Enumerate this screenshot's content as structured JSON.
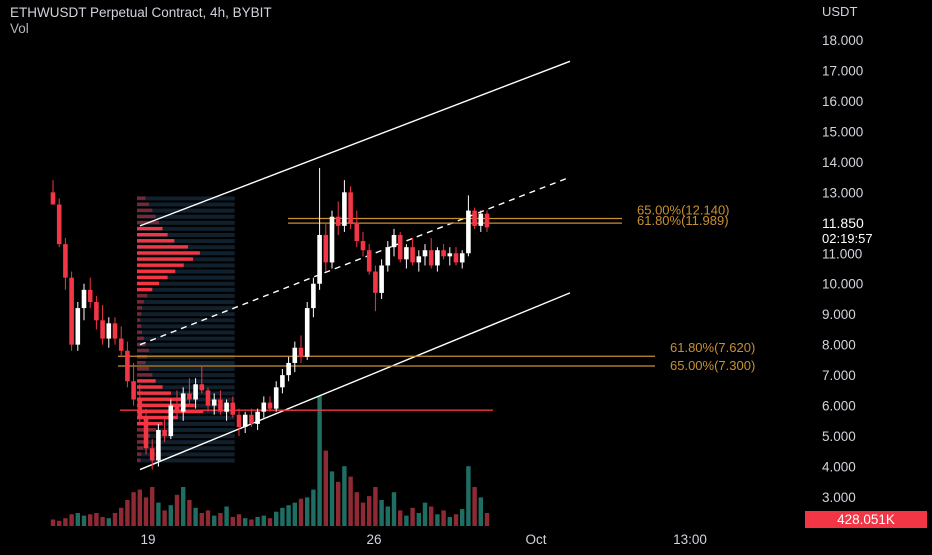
{
  "header": {
    "title": "ETHWUSDT Perpetual Contract, 4h, BYBIT",
    "sub": "Vol"
  },
  "colors": {
    "background": "#000000",
    "bull": "#ffffff",
    "bear": "#f23645",
    "vol_up": "#1f6e63",
    "vol_down": "#8f2a35",
    "profile": "#f23645",
    "profile_va": "#1e3a52",
    "fib": "#c8902f",
    "channel": "#ffffff",
    "support": "#f23645",
    "text": "#d1d4dc",
    "badge": "#f23645"
  },
  "chart_data": {
    "type": "candlestick",
    "title": "ETHWUSDT Perpetual Contract, 4h, BYBIT",
    "indicator": "Vol",
    "yaxis": {
      "unit": "USDT",
      "range": [
        2.4,
        19.0
      ],
      "ticks": [
        "18.000",
        "17.000",
        "16.000",
        "15.000",
        "14.000",
        "13.000",
        "11.000",
        "10.000",
        "9.000",
        "8.000",
        "7.000",
        "6.000",
        "5.000",
        "4.000",
        "3.000"
      ]
    },
    "xaxis": {
      "ticks": [
        "19",
        "26",
        "Oct",
        "13:00"
      ]
    },
    "price": {
      "value": "11.850",
      "countdown": "02:19:57"
    },
    "volume_badge": "428.051K",
    "fib_levels": [
      {
        "label": "65.00%(12.140)",
        "value": 12.14
      },
      {
        "label": "61.80%(11.989)",
        "value": 11.989
      },
      {
        "label": "61.80%(7.620)",
        "value": 7.62
      },
      {
        "label": "65.00%(7.300)",
        "value": 7.3
      }
    ],
    "support_line": 5.85,
    "channel": {
      "upper": [
        [
          4.0,
          11.9
        ],
        [
          18.5,
          17.3
        ]
      ],
      "middle": [
        [
          4.0,
          8.0
        ],
        [
          18.5,
          13.5
        ]
      ],
      "lower": [
        [
          4.0,
          3.9
        ],
        [
          18.5,
          9.7
        ]
      ]
    },
    "candles": [
      [
        13.0,
        13.4,
        12.6,
        12.6
      ],
      [
        12.6,
        12.8,
        11.2,
        11.3
      ],
      [
        11.3,
        11.5,
        9.8,
        10.2
      ],
      [
        10.2,
        10.4,
        7.8,
        8.0
      ],
      [
        8.0,
        9.4,
        7.8,
        9.2
      ],
      [
        9.2,
        10.0,
        8.8,
        9.8
      ],
      [
        9.8,
        10.2,
        9.2,
        9.4
      ],
      [
        9.4,
        9.6,
        8.5,
        8.8
      ],
      [
        8.8,
        9.3,
        8.0,
        8.2
      ],
      [
        8.2,
        8.9,
        7.9,
        8.7
      ],
      [
        8.7,
        8.9,
        8.0,
        8.2
      ],
      [
        8.2,
        8.6,
        7.6,
        7.8
      ],
      [
        7.8,
        8.1,
        6.6,
        6.8
      ],
      [
        6.8,
        7.4,
        6.0,
        6.2
      ],
      [
        6.2,
        6.7,
        5.4,
        5.6
      ],
      [
        5.6,
        5.9,
        4.4,
        4.6
      ],
      [
        4.6,
        4.9,
        3.9,
        4.2
      ],
      [
        4.2,
        5.4,
        4.0,
        5.2
      ],
      [
        5.2,
        5.6,
        4.8,
        5.0
      ],
      [
        5.0,
        6.2,
        4.9,
        6.0
      ],
      [
        6.0,
        6.5,
        5.6,
        5.8
      ],
      [
        5.8,
        6.6,
        5.5,
        6.4
      ],
      [
        6.4,
        6.9,
        6.0,
        6.2
      ],
      [
        6.2,
        6.9,
        5.9,
        6.7
      ],
      [
        6.7,
        7.3,
        6.4,
        6.5
      ],
      [
        6.5,
        6.6,
        5.8,
        6.0
      ],
      [
        6.0,
        6.4,
        5.7,
        6.2
      ],
      [
        6.2,
        6.5,
        5.7,
        5.8
      ],
      [
        5.8,
        6.2,
        5.5,
        6.1
      ],
      [
        6.1,
        6.3,
        5.6,
        5.7
      ],
      [
        5.7,
        5.9,
        5.0,
        5.3
      ],
      [
        5.3,
        5.8,
        5.1,
        5.7
      ],
      [
        5.7,
        5.9,
        5.3,
        5.4
      ],
      [
        5.4,
        5.9,
        5.2,
        5.8
      ],
      [
        5.8,
        6.3,
        5.6,
        6.1
      ],
      [
        6.1,
        6.3,
        5.8,
        5.9
      ],
      [
        5.9,
        6.8,
        5.8,
        6.6
      ],
      [
        6.6,
        7.2,
        6.4,
        7.0
      ],
      [
        7.0,
        7.6,
        6.8,
        7.4
      ],
      [
        7.4,
        8.1,
        7.1,
        7.9
      ],
      [
        7.9,
        8.3,
        7.4,
        7.6
      ],
      [
        7.6,
        9.4,
        7.5,
        9.2
      ],
      [
        9.2,
        10.2,
        8.9,
        10.0
      ],
      [
        10.0,
        13.8,
        9.8,
        11.6
      ],
      [
        11.6,
        12.0,
        10.4,
        10.7
      ],
      [
        10.7,
        12.4,
        10.5,
        12.2
      ],
      [
        12.2,
        12.7,
        11.6,
        11.9
      ],
      [
        11.9,
        13.4,
        11.7,
        13.0
      ],
      [
        13.0,
        13.2,
        11.8,
        12.0
      ],
      [
        12.0,
        12.4,
        11.2,
        11.4
      ],
      [
        11.4,
        11.7,
        10.9,
        11.1
      ],
      [
        11.1,
        11.3,
        10.3,
        10.4
      ],
      [
        10.4,
        10.6,
        9.1,
        9.7
      ],
      [
        9.7,
        10.8,
        9.5,
        10.6
      ],
      [
        10.6,
        11.4,
        10.4,
        11.2
      ],
      [
        11.2,
        11.8,
        10.9,
        11.6
      ],
      [
        11.6,
        11.7,
        10.7,
        10.8
      ],
      [
        10.8,
        11.3,
        10.5,
        11.2
      ],
      [
        11.2,
        11.5,
        10.6,
        10.7
      ],
      [
        10.7,
        11.1,
        10.4,
        10.9
      ],
      [
        10.9,
        11.3,
        10.6,
        11.1
      ],
      [
        11.1,
        11.5,
        10.5,
        10.6
      ],
      [
        10.6,
        11.2,
        10.4,
        11.1
      ],
      [
        11.1,
        11.3,
        10.8,
        10.9
      ],
      [
        10.9,
        11.2,
        10.6,
        11.0
      ],
      [
        11.0,
        11.2,
        10.6,
        10.7
      ],
      [
        10.7,
        11.1,
        10.5,
        11.0
      ],
      [
        11.0,
        12.9,
        10.9,
        12.4
      ],
      [
        12.4,
        12.5,
        11.8,
        11.9
      ],
      [
        11.9,
        12.4,
        11.7,
        12.3
      ],
      [
        12.3,
        12.4,
        11.7,
        11.85
      ]
    ],
    "volume": [
      0.05,
      0.04,
      0.06,
      0.09,
      0.1,
      0.08,
      0.09,
      0.1,
      0.07,
      0.06,
      0.1,
      0.14,
      0.2,
      0.26,
      0.28,
      0.22,
      0.3,
      0.18,
      0.12,
      0.16,
      0.24,
      0.3,
      0.2,
      0.14,
      0.1,
      0.12,
      0.08,
      0.1,
      0.15,
      0.07,
      0.09,
      0.06,
      0.05,
      0.07,
      0.08,
      0.06,
      0.11,
      0.14,
      0.16,
      0.18,
      0.21,
      0.22,
      0.28,
      1.0,
      0.58,
      0.42,
      0.34,
      0.46,
      0.38,
      0.26,
      0.18,
      0.23,
      0.3,
      0.2,
      0.15,
      0.26,
      0.12,
      0.08,
      0.14,
      0.1,
      0.18,
      0.15,
      0.09,
      0.12,
      0.07,
      0.09,
      0.13,
      0.46,
      0.3,
      0.22,
      0.1
    ],
    "volume_profile": [
      [
        12.8,
        0.1,
        0
      ],
      [
        12.6,
        0.14,
        0
      ],
      [
        12.4,
        0.18,
        0
      ],
      [
        12.2,
        0.22,
        0
      ],
      [
        12.0,
        0.26,
        0
      ],
      [
        11.8,
        0.3,
        1
      ],
      [
        11.6,
        0.36,
        1
      ],
      [
        11.4,
        0.44,
        1
      ],
      [
        11.2,
        0.6,
        1
      ],
      [
        11.0,
        0.74,
        1
      ],
      [
        10.8,
        0.66,
        1
      ],
      [
        10.6,
        0.55,
        1
      ],
      [
        10.4,
        0.45,
        1
      ],
      [
        10.2,
        0.36,
        1
      ],
      [
        10.0,
        0.26,
        1
      ],
      [
        9.8,
        0.18,
        1
      ],
      [
        9.6,
        0.12,
        0
      ],
      [
        9.4,
        0.08,
        0
      ],
      [
        9.2,
        0.06,
        0
      ],
      [
        9.0,
        0.05,
        0
      ],
      [
        8.8,
        0.04,
        0
      ],
      [
        8.6,
        0.05,
        0
      ],
      [
        8.4,
        0.06,
        0
      ],
      [
        8.2,
        0.08,
        0
      ],
      [
        8.0,
        0.1,
        0
      ],
      [
        7.8,
        0.14,
        0
      ],
      [
        7.6,
        0.12,
        0
      ],
      [
        7.4,
        0.1,
        0
      ],
      [
        7.2,
        0.14,
        0
      ],
      [
        7.0,
        0.18,
        0
      ],
      [
        6.8,
        0.22,
        1
      ],
      [
        6.6,
        0.3,
        1
      ],
      [
        6.4,
        0.4,
        1
      ],
      [
        6.2,
        0.52,
        1
      ],
      [
        6.0,
        0.68,
        1
      ],
      [
        5.8,
        0.78,
        1
      ],
      [
        5.6,
        0.48,
        1
      ],
      [
        5.4,
        0.3,
        1
      ],
      [
        5.2,
        0.22,
        0
      ],
      [
        5.0,
        0.15,
        0
      ],
      [
        4.8,
        0.1,
        0
      ],
      [
        4.6,
        0.07,
        0
      ],
      [
        4.4,
        0.05,
        0
      ],
      [
        4.2,
        0.04,
        0
      ]
    ]
  }
}
